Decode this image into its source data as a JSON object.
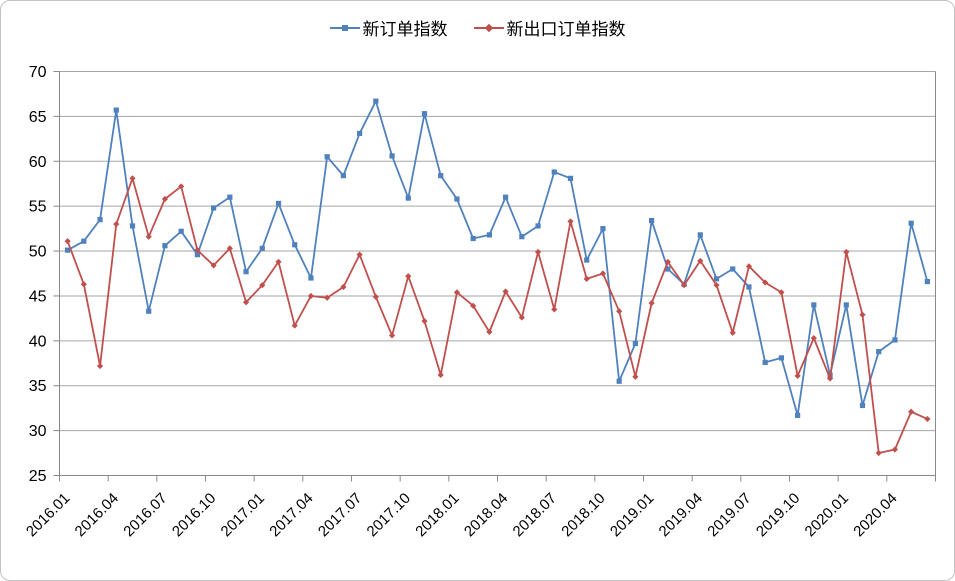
{
  "chart": {
    "legend": [
      {
        "label": "新订单指数",
        "color": "#4f81bd",
        "marker": "square"
      },
      {
        "label": "新出口订单指数",
        "color": "#c0504d",
        "marker": "diamond"
      }
    ]
  },
  "chart_data": {
    "type": "line",
    "title": "",
    "xlabel": "",
    "ylabel": "",
    "grid": "horizontal",
    "legend_position": "top-center",
    "ylim": [
      25,
      70
    ],
    "y_ticks": [
      70,
      65,
      60,
      55,
      50,
      45,
      40,
      35,
      30,
      25
    ],
    "x_tick_labels": [
      "2016.01",
      "2016.04",
      "2016.07",
      "2016.10",
      "2017.01",
      "2017.04",
      "2017.07",
      "2017.10",
      "2018.01",
      "2018.04",
      "2018.07",
      "2018.10",
      "2019.01",
      "2019.04",
      "2019.07",
      "2019.10",
      "2020.01",
      "2020.04"
    ],
    "x": [
      "2016.01",
      "2016.02",
      "2016.03",
      "2016.04",
      "2016.05",
      "2016.06",
      "2016.07",
      "2016.08",
      "2016.09",
      "2016.10",
      "2016.11",
      "2016.12",
      "2017.01",
      "2017.02",
      "2017.03",
      "2017.04",
      "2017.05",
      "2017.06",
      "2017.07",
      "2017.08",
      "2017.09",
      "2017.10",
      "2017.11",
      "2017.12",
      "2018.01",
      "2018.02",
      "2018.03",
      "2018.04",
      "2018.05",
      "2018.06",
      "2018.07",
      "2018.08",
      "2018.09",
      "2018.10",
      "2018.11",
      "2018.12",
      "2019.01",
      "2019.02",
      "2019.03",
      "2019.04",
      "2019.05",
      "2019.06",
      "2019.07",
      "2019.08",
      "2019.09",
      "2019.10",
      "2019.11",
      "2019.12",
      "2020.01",
      "2020.02",
      "2020.03",
      "2020.04",
      "2020.05",
      "2020.06"
    ],
    "series": [
      {
        "name": "新订单指数",
        "color": "#4f81bd",
        "marker": "square",
        "values": [
          50.1,
          51.1,
          53.5,
          65.7,
          52.8,
          43.3,
          50.6,
          52.2,
          49.6,
          54.8,
          56.0,
          47.7,
          50.3,
          55.3,
          50.7,
          47.0,
          60.5,
          58.4,
          63.1,
          66.7,
          60.6,
          55.9,
          65.3,
          58.4,
          55.8,
          51.4,
          51.8,
          56.0,
          51.6,
          52.8,
          58.8,
          58.1,
          49.0,
          52.5,
          35.5,
          39.7,
          53.4,
          48.0,
          46.3,
          51.8,
          46.9,
          48.0,
          46.0,
          37.6,
          38.1,
          31.7,
          44.0,
          36.2,
          44.0,
          32.8,
          38.8,
          40.1,
          53.1,
          46.6
        ]
      },
      {
        "name": "新出口订单指数",
        "color": "#c0504d",
        "marker": "diamond",
        "values": [
          51.1,
          46.3,
          37.2,
          53.0,
          58.1,
          51.6,
          55.8,
          57.2,
          50.1,
          48.4,
          50.3,
          44.3,
          46.2,
          48.8,
          41.7,
          45.0,
          44.8,
          46.0,
          49.6,
          44.9,
          40.6,
          47.2,
          42.2,
          36.2,
          45.4,
          43.9,
          41.0,
          45.5,
          42.6,
          49.9,
          43.5,
          53.3,
          46.9,
          47.5,
          43.3,
          36.0,
          44.2,
          48.8,
          46.2,
          48.9,
          46.2,
          40.9,
          48.3,
          46.5,
          45.4,
          36.1,
          40.3,
          35.8,
          49.9,
          42.9,
          27.5,
          27.9,
          32.1,
          31.3
        ]
      }
    ],
    "axis_color": "#898989",
    "gridline_color": "#a6a6a6",
    "tick_label_color": "#000000"
  }
}
